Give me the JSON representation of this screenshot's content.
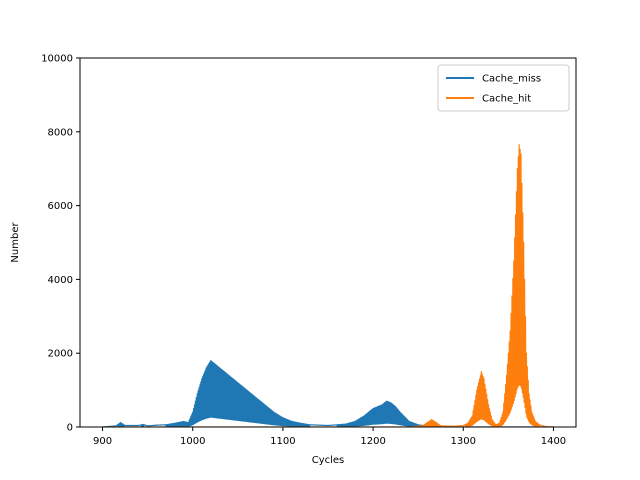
{
  "chart_data": {
    "type": "line",
    "title": "",
    "xlabel": "Cycles",
    "ylabel": "Number",
    "xlim": [
      875,
      1425
    ],
    "ylim": [
      0,
      10000
    ],
    "xticks": [
      900,
      1000,
      1100,
      1200,
      1300,
      1400
    ],
    "yticks": [
      0,
      2000,
      4000,
      6000,
      8000,
      10000
    ],
    "grid": false,
    "legend_position": "upper right",
    "series": [
      {
        "name": "Cache_miss",
        "color": "#1f77b4",
        "envelope": [
          [
            900,
            0
          ],
          [
            915,
            30
          ],
          [
            920,
            120
          ],
          [
            925,
            40
          ],
          [
            940,
            40
          ],
          [
            945,
            70
          ],
          [
            950,
            30
          ],
          [
            960,
            50
          ],
          [
            970,
            60
          ],
          [
            980,
            100
          ],
          [
            990,
            150
          ],
          [
            995,
            120
          ],
          [
            1000,
            400
          ],
          [
            1005,
            900
          ],
          [
            1010,
            1300
          ],
          [
            1015,
            1600
          ],
          [
            1020,
            1800
          ],
          [
            1025,
            1700
          ],
          [
            1030,
            1600
          ],
          [
            1040,
            1400
          ],
          [
            1050,
            1200
          ],
          [
            1060,
            1000
          ],
          [
            1070,
            800
          ],
          [
            1080,
            600
          ],
          [
            1090,
            400
          ],
          [
            1100,
            250
          ],
          [
            1110,
            150
          ],
          [
            1120,
            100
          ],
          [
            1130,
            60
          ],
          [
            1140,
            50
          ],
          [
            1150,
            40
          ],
          [
            1160,
            60
          ],
          [
            1170,
            80
          ],
          [
            1180,
            150
          ],
          [
            1190,
            300
          ],
          [
            1200,
            500
          ],
          [
            1210,
            600
          ],
          [
            1215,
            700
          ],
          [
            1220,
            650
          ],
          [
            1225,
            550
          ],
          [
            1230,
            400
          ],
          [
            1240,
            150
          ],
          [
            1250,
            60
          ],
          [
            1260,
            20
          ],
          [
            1270,
            10
          ],
          [
            1280,
            0
          ],
          [
            1400,
            0
          ]
        ]
      },
      {
        "name": "Cache_hit",
        "color": "#ff7f0e",
        "envelope": [
          [
            900,
            0
          ],
          [
            1240,
            0
          ],
          [
            1255,
            30
          ],
          [
            1260,
            120
          ],
          [
            1265,
            200
          ],
          [
            1270,
            120
          ],
          [
            1275,
            30
          ],
          [
            1290,
            20
          ],
          [
            1300,
            40
          ],
          [
            1305,
            100
          ],
          [
            1310,
            300
          ],
          [
            1315,
            1000
          ],
          [
            1320,
            1500
          ],
          [
            1323,
            1300
          ],
          [
            1328,
            600
          ],
          [
            1332,
            200
          ],
          [
            1336,
            60
          ],
          [
            1340,
            100
          ],
          [
            1344,
            400
          ],
          [
            1348,
            1400
          ],
          [
            1352,
            2600
          ],
          [
            1356,
            4500
          ],
          [
            1360,
            7000
          ],
          [
            1362,
            7650
          ],
          [
            1364,
            7400
          ],
          [
            1367,
            5000
          ],
          [
            1370,
            2000
          ],
          [
            1373,
            900
          ],
          [
            1376,
            400
          ],
          [
            1380,
            150
          ],
          [
            1385,
            50
          ],
          [
            1392,
            10
          ],
          [
            1400,
            0
          ]
        ]
      }
    ]
  }
}
